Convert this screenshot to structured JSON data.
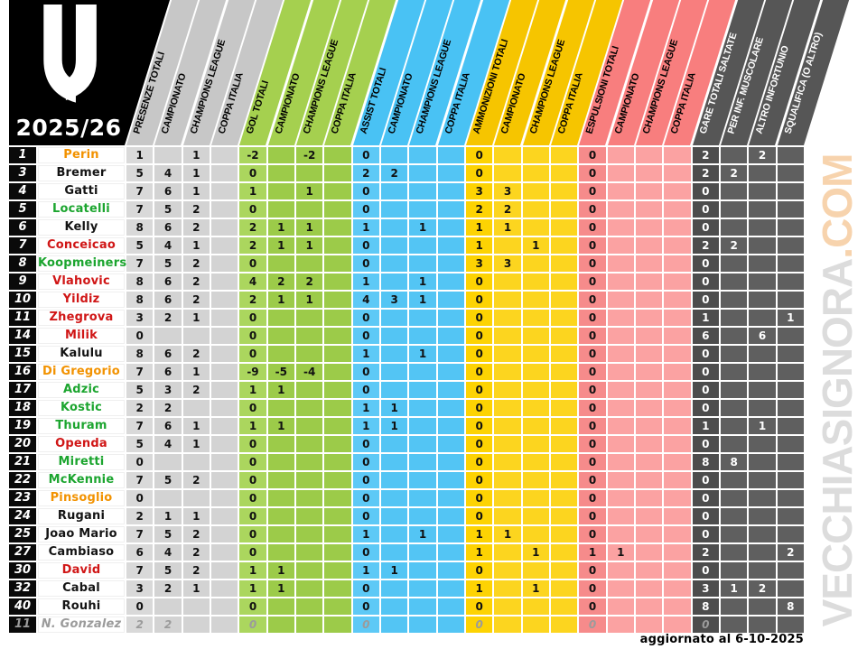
{
  "chart_data": {
    "type": "table",
    "title": "2025/26",
    "team": "Juventus",
    "updated_note": "aggiornato al 6-10-2025",
    "watermark": {
      "main": "VECCHIASIGNORA",
      "suffix": ".COM"
    },
    "column_groups": [
      {
        "name": "presenze",
        "labels": [
          "PRESENZE TOTALI",
          "CAMPIONATO",
          "CHAMPIONS LEAGUE",
          "COPPA ITALIA"
        ],
        "colors": {
          "header": "#c7c7c7",
          "total": "#d9d9d9",
          "sub": "#d3d3d3",
          "text": "#111111",
          "headerText": "#000000"
        }
      },
      {
        "name": "gol",
        "labels": [
          "GOL TOTALI",
          "CAMPIONATO",
          "CHAMPIONS LEAGUE",
          "COPPA ITALIA"
        ],
        "colors": {
          "header": "#a5d04f",
          "total": "#abd65e",
          "sub": "#9ccb49",
          "text": "#111111",
          "headerText": "#000000"
        }
      },
      {
        "name": "assist",
        "labels": [
          "ASSIST TOTALI",
          "CAMPIONATO",
          "CHAMPIONS LEAGUE",
          "COPPA ITALIA"
        ],
        "colors": {
          "header": "#49c2f4",
          "total": "#5dc9f6",
          "sub": "#53c5f4",
          "text": "#111111",
          "headerText": "#000000"
        }
      },
      {
        "name": "ammonizioni",
        "labels": [
          "AMMONIZIONI TOTALI",
          "CAMPIONATO",
          "CHAMPIONS LEAGUE",
          "COPPA ITALIA"
        ],
        "colors": {
          "header": "#f6c500",
          "total": "#fdd303",
          "sub": "#fcd51f",
          "text": "#111111",
          "headerText": "#000000"
        }
      },
      {
        "name": "espulsioni",
        "labels": [
          "ESPULSIONI TOTALI",
          "CAMPIONATO",
          "CHAMPIONS LEAGUE",
          "COPPA ITALIA"
        ],
        "colors": {
          "header": "#f87e7e",
          "total": "#f68b8b",
          "sub": "#fba2a2",
          "text": "#111111",
          "headerText": "#000000"
        }
      },
      {
        "name": "gare_saltate",
        "labels": [
          "GARE TOTALI SALTATE",
          "PER INF. MUSCOLARE",
          "ALTRO INFORTUNIO",
          "SQUALIFICA (O ALTRO)"
        ],
        "colors": {
          "header": "#565656",
          "total": "#4d4d4d",
          "sub": "#5f5f5f",
          "text": "#ffffff",
          "headerText": "#ffffff"
        }
      }
    ],
    "role_colors": {
      "gk": "#f29200",
      "df": "#141414",
      "mf": "#1ca52f",
      "fw": "#d01616",
      "former": "#a0a0a0"
    },
    "players": [
      {
        "num": "1",
        "name": "Perin",
        "role": "gk",
        "values": [
          "1",
          "",
          "1",
          "",
          "-2",
          "",
          "-2",
          "",
          "0",
          "",
          "",
          "",
          "0",
          "",
          "",
          "",
          "0",
          "",
          "",
          "",
          "2",
          "",
          "2",
          ""
        ]
      },
      {
        "num": "3",
        "name": "Bremer",
        "role": "df",
        "values": [
          "5",
          "4",
          "1",
          "",
          "0",
          "",
          "",
          "",
          "2",
          "2",
          "",
          "",
          "0",
          "",
          "",
          "",
          "0",
          "",
          "",
          "",
          "2",
          "2",
          "",
          ""
        ]
      },
      {
        "num": "4",
        "name": "Gatti",
        "role": "df",
        "values": [
          "7",
          "6",
          "1",
          "",
          "1",
          "",
          "1",
          "",
          "0",
          "",
          "",
          "",
          "3",
          "3",
          "",
          "",
          "0",
          "",
          "",
          "",
          "0",
          "",
          "",
          ""
        ]
      },
      {
        "num": "5",
        "name": "Locatelli",
        "role": "mf",
        "values": [
          "7",
          "5",
          "2",
          "",
          "0",
          "",
          "",
          "",
          "0",
          "",
          "",
          "",
          "2",
          "2",
          "",
          "",
          "0",
          "",
          "",
          "",
          "0",
          "",
          "",
          ""
        ]
      },
      {
        "num": "6",
        "name": "Kelly",
        "role": "df",
        "values": [
          "8",
          "6",
          "2",
          "",
          "2",
          "1",
          "1",
          "",
          "1",
          "",
          "1",
          "",
          "1",
          "1",
          "",
          "",
          "0",
          "",
          "",
          "",
          "0",
          "",
          "",
          ""
        ]
      },
      {
        "num": "7",
        "name": "Conceicao",
        "role": "fw",
        "values": [
          "5",
          "4",
          "1",
          "",
          "2",
          "1",
          "1",
          "",
          "0",
          "",
          "",
          "",
          "1",
          "",
          "1",
          "",
          "0",
          "",
          "",
          "",
          "2",
          "2",
          "",
          ""
        ]
      },
      {
        "num": "8",
        "name": "Koopmeiners",
        "role": "mf",
        "values": [
          "7",
          "5",
          "2",
          "",
          "0",
          "",
          "",
          "",
          "0",
          "",
          "",
          "",
          "3",
          "3",
          "",
          "",
          "0",
          "",
          "",
          "",
          "0",
          "",
          "",
          ""
        ]
      },
      {
        "num": "9",
        "name": "Vlahovic",
        "role": "fw",
        "values": [
          "8",
          "6",
          "2",
          "",
          "4",
          "2",
          "2",
          "",
          "1",
          "",
          "1",
          "",
          "0",
          "",
          "",
          "",
          "0",
          "",
          "",
          "",
          "0",
          "",
          "",
          ""
        ]
      },
      {
        "num": "10",
        "name": "Yildiz",
        "role": "fw",
        "values": [
          "8",
          "6",
          "2",
          "",
          "2",
          "1",
          "1",
          "",
          "4",
          "3",
          "1",
          "",
          "0",
          "",
          "",
          "",
          "0",
          "",
          "",
          "",
          "0",
          "",
          "",
          ""
        ]
      },
      {
        "num": "11",
        "name": "Zhegrova",
        "role": "fw",
        "values": [
          "3",
          "2",
          "1",
          "",
          "0",
          "",
          "",
          "",
          "0",
          "",
          "",
          "",
          "0",
          "",
          "",
          "",
          "0",
          "",
          "",
          "",
          "1",
          "",
          "",
          "1"
        ]
      },
      {
        "num": "14",
        "name": "Milik",
        "role": "fw",
        "values": [
          "0",
          "",
          "",
          "",
          "0",
          "",
          "",
          "",
          "0",
          "",
          "",
          "",
          "0",
          "",
          "",
          "",
          "0",
          "",
          "",
          "",
          "6",
          "",
          "6",
          ""
        ]
      },
      {
        "num": "15",
        "name": "Kalulu",
        "role": "df",
        "values": [
          "8",
          "6",
          "2",
          "",
          "0",
          "",
          "",
          "",
          "1",
          "",
          "1",
          "",
          "0",
          "",
          "",
          "",
          "0",
          "",
          "",
          "",
          "0",
          "",
          "",
          ""
        ]
      },
      {
        "num": "16",
        "name": "Di Gregorio",
        "role": "gk",
        "values": [
          "7",
          "6",
          "1",
          "",
          "-9",
          "-5",
          "-4",
          "",
          "0",
          "",
          "",
          "",
          "0",
          "",
          "",
          "",
          "0",
          "",
          "",
          "",
          "0",
          "",
          "",
          ""
        ]
      },
      {
        "num": "17",
        "name": "Adzic",
        "role": "mf",
        "values": [
          "5",
          "3",
          "2",
          "",
          "1",
          "1",
          "",
          "",
          "0",
          "",
          "",
          "",
          "0",
          "",
          "",
          "",
          "0",
          "",
          "",
          "",
          "0",
          "",
          "",
          ""
        ]
      },
      {
        "num": "18",
        "name": "Kostic",
        "role": "mf",
        "values": [
          "2",
          "2",
          "",
          "",
          "0",
          "",
          "",
          "",
          "1",
          "1",
          "",
          "",
          "0",
          "",
          "",
          "",
          "0",
          "",
          "",
          "",
          "0",
          "",
          "",
          ""
        ]
      },
      {
        "num": "19",
        "name": "Thuram",
        "role": "mf",
        "values": [
          "7",
          "6",
          "1",
          "",
          "1",
          "1",
          "",
          "",
          "1",
          "1",
          "",
          "",
          "0",
          "",
          "",
          "",
          "0",
          "",
          "",
          "",
          "1",
          "",
          "1",
          ""
        ]
      },
      {
        "num": "20",
        "name": "Openda",
        "role": "fw",
        "values": [
          "5",
          "4",
          "1",
          "",
          "0",
          "",
          "",
          "",
          "0",
          "",
          "",
          "",
          "0",
          "",
          "",
          "",
          "0",
          "",
          "",
          "",
          "0",
          "",
          "",
          ""
        ]
      },
      {
        "num": "21",
        "name": "Miretti",
        "role": "mf",
        "values": [
          "0",
          "",
          "",
          "",
          "0",
          "",
          "",
          "",
          "0",
          "",
          "",
          "",
          "0",
          "",
          "",
          "",
          "0",
          "",
          "",
          "",
          "8",
          "8",
          "",
          ""
        ]
      },
      {
        "num": "22",
        "name": "McKennie",
        "role": "mf",
        "values": [
          "7",
          "5",
          "2",
          "",
          "0",
          "",
          "",
          "",
          "0",
          "",
          "",
          "",
          "0",
          "",
          "",
          "",
          "0",
          "",
          "",
          "",
          "0",
          "",
          "",
          ""
        ]
      },
      {
        "num": "23",
        "name": "Pinsoglio",
        "role": "gk",
        "values": [
          "0",
          "",
          "",
          "",
          "0",
          "",
          "",
          "",
          "0",
          "",
          "",
          "",
          "0",
          "",
          "",
          "",
          "0",
          "",
          "",
          "",
          "0",
          "",
          "",
          ""
        ]
      },
      {
        "num": "24",
        "name": "Rugani",
        "role": "df",
        "values": [
          "2",
          "1",
          "1",
          "",
          "0",
          "",
          "",
          "",
          "0",
          "",
          "",
          "",
          "0",
          "",
          "",
          "",
          "0",
          "",
          "",
          "",
          "0",
          "",
          "",
          ""
        ]
      },
      {
        "num": "25",
        "name": "Joao Mario",
        "role": "df",
        "values": [
          "7",
          "5",
          "2",
          "",
          "0",
          "",
          "",
          "",
          "1",
          "",
          "1",
          "",
          "1",
          "1",
          "",
          "",
          "0",
          "",
          "",
          "",
          "0",
          "",
          "",
          ""
        ]
      },
      {
        "num": "27",
        "name": "Cambiaso",
        "role": "df",
        "values": [
          "6",
          "4",
          "2",
          "",
          "0",
          "",
          "",
          "",
          "0",
          "",
          "",
          "",
          "1",
          "",
          "1",
          "",
          "1",
          "1",
          "",
          "",
          "2",
          "",
          "",
          "2"
        ]
      },
      {
        "num": "30",
        "name": "David",
        "role": "fw",
        "values": [
          "7",
          "5",
          "2",
          "",
          "1",
          "1",
          "",
          "",
          "1",
          "1",
          "",
          "",
          "0",
          "",
          "",
          "",
          "0",
          "",
          "",
          "",
          "0",
          "",
          "",
          ""
        ]
      },
      {
        "num": "32",
        "name": "Cabal",
        "role": "df",
        "values": [
          "3",
          "2",
          "1",
          "",
          "1",
          "1",
          "",
          "",
          "0",
          "",
          "",
          "",
          "1",
          "",
          "1",
          "",
          "0",
          "",
          "",
          "",
          "3",
          "1",
          "2",
          ""
        ]
      },
      {
        "num": "40",
        "name": "Rouhi",
        "role": "df",
        "values": [
          "0",
          "",
          "",
          "",
          "0",
          "",
          "",
          "",
          "0",
          "",
          "",
          "",
          "0",
          "",
          "",
          "",
          "0",
          "",
          "",
          "",
          "8",
          "",
          "",
          "8"
        ]
      },
      {
        "num": "11",
        "name": "N. Gonzalez",
        "role": "former",
        "values": [
          "2",
          "2",
          "",
          "",
          "0",
          "",
          "",
          "",
          "0",
          "",
          "",
          "",
          "0",
          "",
          "",
          "",
          "0",
          "",
          "",
          "",
          "0",
          "",
          "",
          ""
        ]
      }
    ]
  }
}
